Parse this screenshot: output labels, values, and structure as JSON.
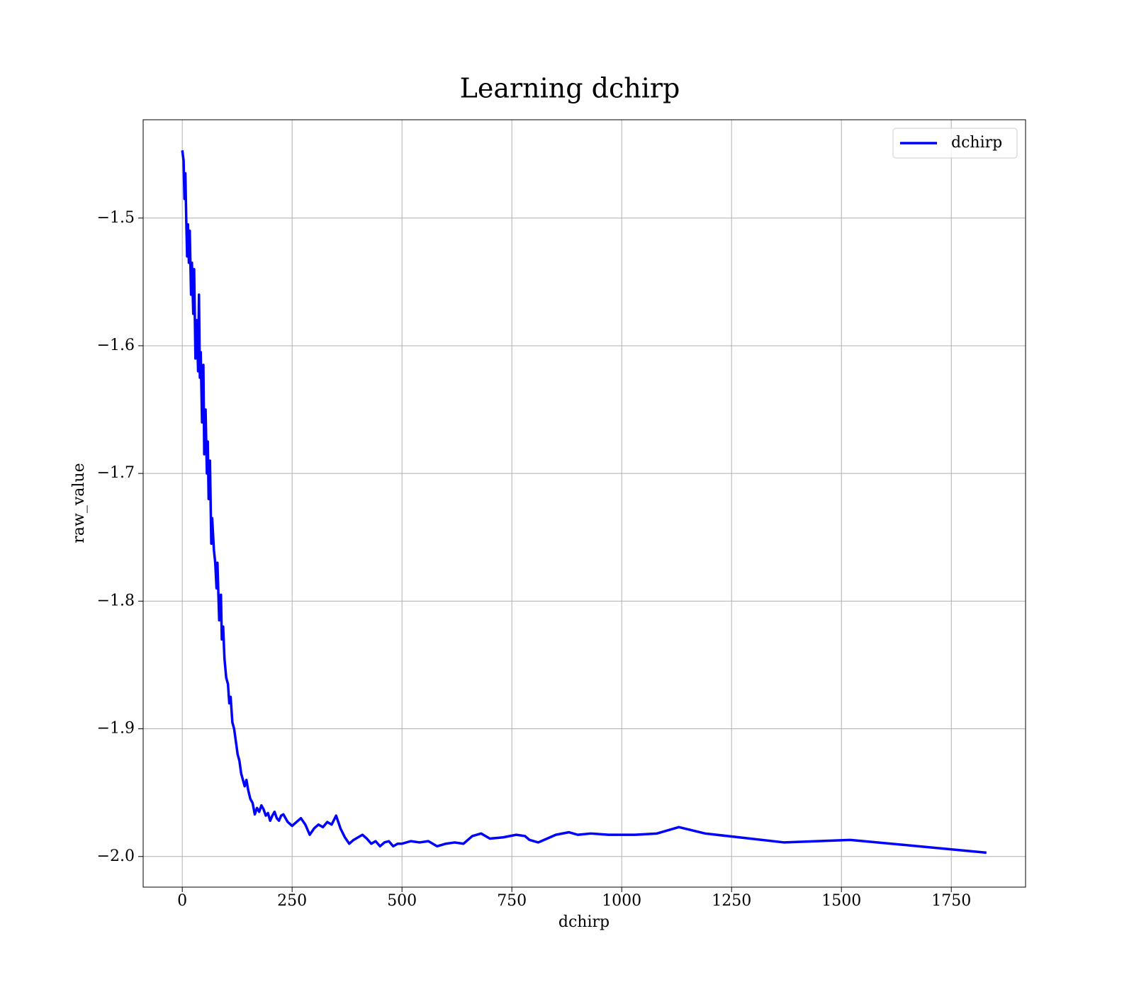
{
  "chart_data": {
    "type": "line",
    "title": "Learning dchirp",
    "x_label": "dchirp",
    "y_label": "raw_value",
    "xlim": [
      -89,
      1919
    ],
    "ylim": [
      -2.024,
      -1.423
    ],
    "xticks": [
      0,
      250,
      500,
      750,
      1000,
      1250,
      1500,
      1750
    ],
    "yticks": [
      {
        "value": -2.0,
        "label": "−2.0"
      },
      {
        "value": -1.9,
        "label": "−1.9"
      },
      {
        "value": -1.8,
        "label": "−1.8"
      },
      {
        "value": -1.7,
        "label": "−1.7"
      },
      {
        "value": -1.6,
        "label": "−1.6"
      },
      {
        "value": -1.5,
        "label": "−1.5"
      }
    ],
    "grid": true,
    "legend": "upper right",
    "x": [
      0,
      3,
      5,
      7,
      9,
      11,
      13,
      15,
      17,
      20,
      22,
      25,
      27,
      30,
      33,
      36,
      38,
      40,
      42,
      45,
      48,
      50,
      53,
      56,
      58,
      60,
      63,
      66,
      68,
      72,
      75,
      78,
      80,
      84,
      88,
      90,
      93,
      96,
      100,
      104,
      107,
      110,
      114,
      118,
      122,
      126,
      130,
      134,
      138,
      142,
      146,
      150,
      155,
      160,
      165,
      170,
      175,
      180,
      185,
      190,
      195,
      200,
      205,
      210,
      215,
      220,
      225,
      230,
      240,
      250,
      260,
      270,
      280,
      290,
      300,
      310,
      320,
      330,
      340,
      350,
      360,
      370,
      380,
      390,
      400,
      410,
      420,
      430,
      440,
      450,
      460,
      470,
      480,
      490,
      500,
      520,
      540,
      560,
      580,
      600,
      620,
      640,
      660,
      680,
      700,
      730,
      760,
      780,
      790,
      810,
      850,
      880,
      900,
      930,
      970,
      1030,
      1080,
      1130,
      1190,
      1370,
      1520,
      1830
    ],
    "series": [
      {
        "name": "dchirp",
        "color": "#0000ff",
        "values": [
          -1.447,
          -1.455,
          -1.485,
          -1.465,
          -1.5,
          -1.53,
          -1.505,
          -1.535,
          -1.51,
          -1.56,
          -1.535,
          -1.575,
          -1.54,
          -1.61,
          -1.58,
          -1.62,
          -1.56,
          -1.625,
          -1.605,
          -1.66,
          -1.615,
          -1.685,
          -1.65,
          -1.7,
          -1.675,
          -1.72,
          -1.69,
          -1.755,
          -1.735,
          -1.76,
          -1.77,
          -1.79,
          -1.77,
          -1.815,
          -1.795,
          -1.83,
          -1.82,
          -1.845,
          -1.86,
          -1.865,
          -1.88,
          -1.875,
          -1.895,
          -1.9,
          -1.91,
          -1.92,
          -1.925,
          -1.935,
          -1.94,
          -1.945,
          -1.94,
          -1.948,
          -1.955,
          -1.958,
          -1.967,
          -1.962,
          -1.965,
          -1.96,
          -1.963,
          -1.968,
          -1.966,
          -1.972,
          -1.968,
          -1.965,
          -1.97,
          -1.972,
          -1.968,
          -1.967,
          -1.973,
          -1.976,
          -1.973,
          -1.97,
          -1.975,
          -1.983,
          -1.978,
          -1.975,
          -1.977,
          -1.973,
          -1.975,
          -1.968,
          -1.978,
          -1.985,
          -1.99,
          -1.987,
          -1.985,
          -1.983,
          -1.986,
          -1.99,
          -1.988,
          -1.992,
          -1.989,
          -1.988,
          -1.992,
          -1.99,
          -1.99,
          -1.988,
          -1.989,
          -1.988,
          -1.992,
          -1.99,
          -1.989,
          -1.99,
          -1.984,
          -1.982,
          -1.986,
          -1.985,
          -1.983,
          -1.984,
          -1.987,
          -1.989,
          -1.983,
          -1.981,
          -1.983,
          -1.982,
          -1.983,
          -1.983,
          -1.982,
          -1.977,
          -1.982,
          -1.989,
          -1.987,
          -1.997
        ]
      }
    ]
  }
}
